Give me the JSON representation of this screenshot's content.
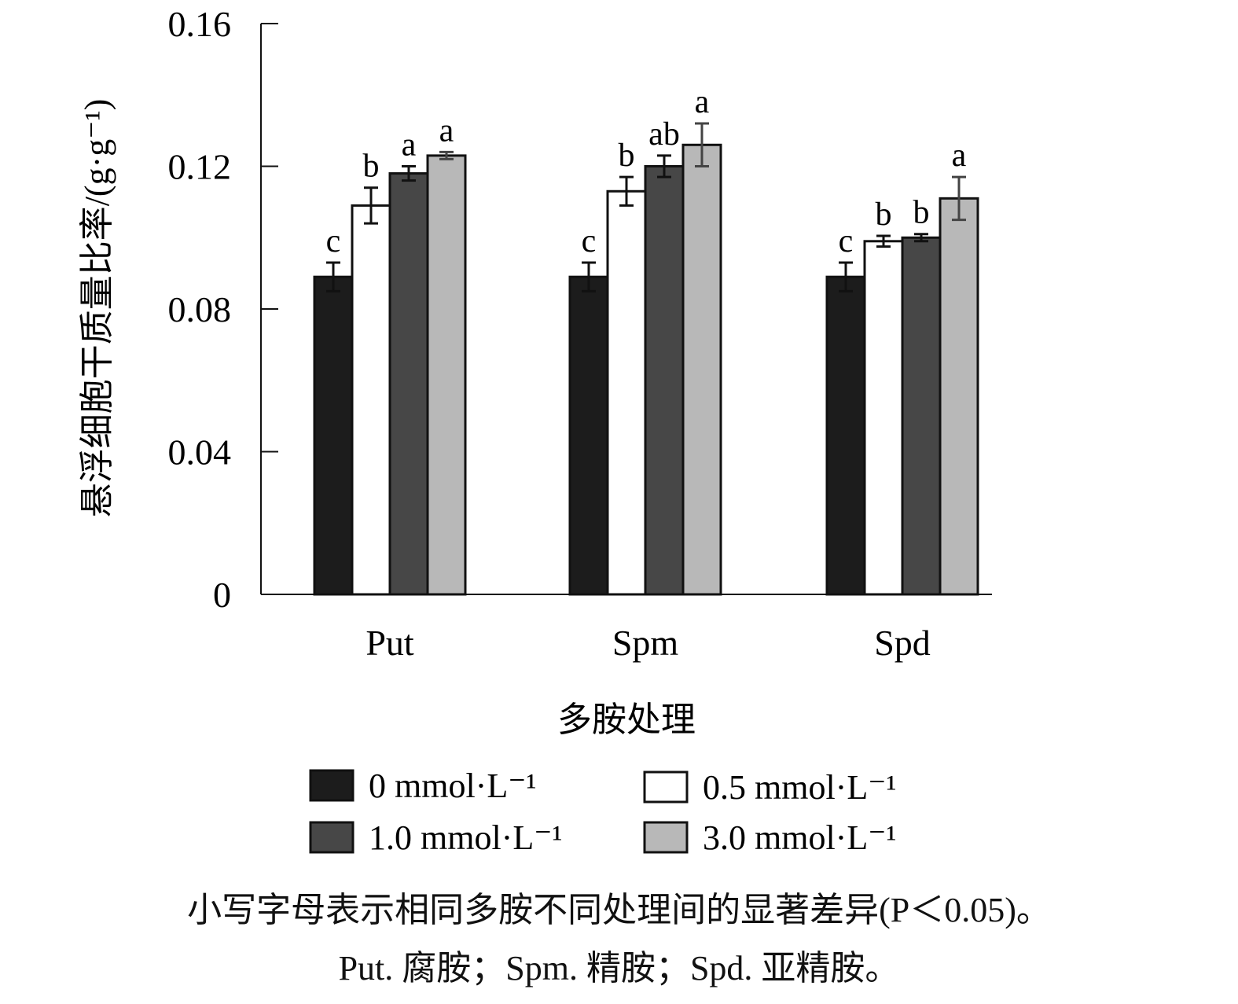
{
  "chart_data": {
    "type": "bar",
    "categories": [
      "Put",
      "Spm",
      "Spd"
    ],
    "xlabel": "多胺处理",
    "ylabel": "悬浮细胞干质量比率/(g·g⁻¹)",
    "ylim": [
      0,
      0.16
    ],
    "yticks": [
      "0",
      "0.04",
      "0.08",
      "0.12",
      "0.16"
    ],
    "series": [
      {
        "name": "0 mmol·L⁻¹",
        "color": "#1c1c1c",
        "values": [
          0.089,
          0.089,
          0.089
        ],
        "errors": [
          0.004,
          0.004,
          0.004
        ],
        "labels": [
          "c",
          "c",
          "c"
        ]
      },
      {
        "name": "0.5 mmol·L⁻¹",
        "color": "#ffffff",
        "values": [
          0.109,
          0.113,
          0.099
        ],
        "errors": [
          0.005,
          0.004,
          0.0015
        ],
        "labels": [
          "b",
          "b",
          "b"
        ]
      },
      {
        "name": "1.0 mmol·L⁻¹",
        "color": "#474747",
        "values": [
          0.118,
          0.12,
          0.1
        ],
        "errors": [
          0.002,
          0.003,
          0.001
        ],
        "labels": [
          "a",
          "ab",
          "b"
        ]
      },
      {
        "name": "3.0 mmol·L⁻¹",
        "color": "#b8b8b8",
        "values": [
          0.123,
          0.126,
          0.111
        ],
        "errors": [
          0.001,
          0.006,
          0.006
        ],
        "labels": [
          "a",
          "a",
          "a"
        ]
      }
    ],
    "grid": false,
    "legend_position": "bottom"
  },
  "caption": {
    "line1": "小写字母表示相同多胺不同处理间的显著差异(P＜0.05)。",
    "line2": "Put. 腐胺；Spm. 精胺；Spd. 亚精胺。"
  }
}
